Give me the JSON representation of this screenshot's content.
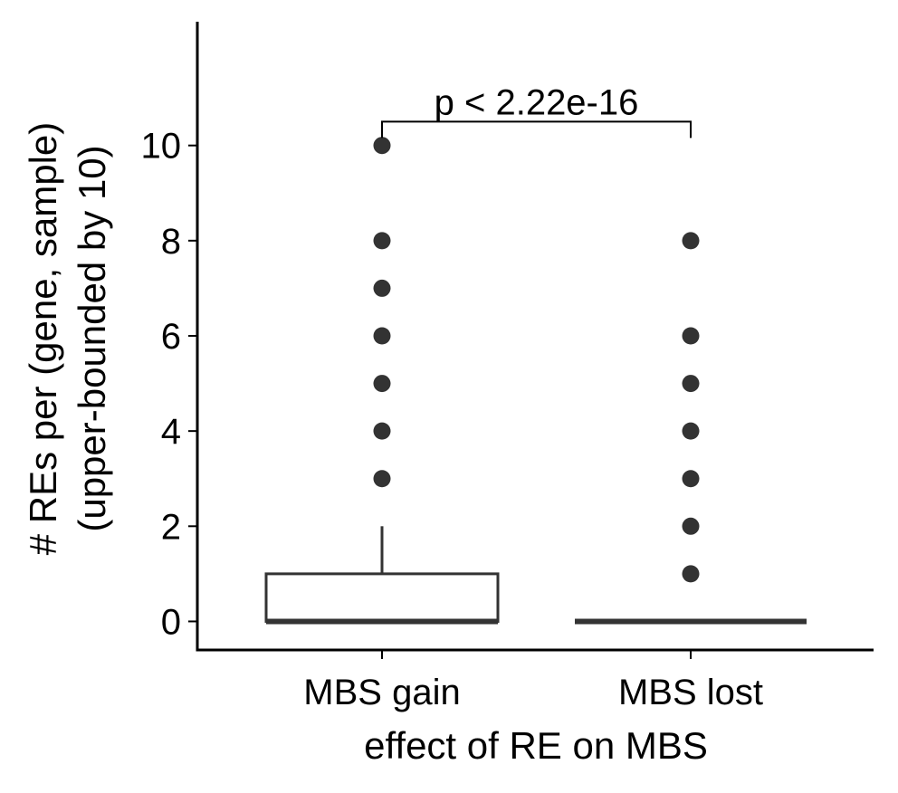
{
  "chart_data": {
    "type": "box",
    "title": "",
    "xlabel": "effect of RE on MBS",
    "ylabel_lines": [
      "# REs per (gene, sample)",
      "(upper-bounded by 10)"
    ],
    "ylim": [
      -0.6,
      12.6
    ],
    "y_ticks": [
      0,
      2,
      4,
      6,
      8,
      10
    ],
    "y_tick_labels": [
      "0",
      "2",
      "4",
      "6",
      "8",
      "10"
    ],
    "categories": [
      "MBS gain",
      "MBS lost"
    ],
    "boxes": [
      {
        "category": "MBS gain",
        "q1": 0,
        "median": 0,
        "q3": 1,
        "whisker_low": 0,
        "whisker_high": 2,
        "outliers": [
          3,
          4,
          5,
          6,
          7,
          8,
          10
        ]
      },
      {
        "category": "MBS lost",
        "q1": 0,
        "median": 0,
        "q3": 0,
        "whisker_low": 0,
        "whisker_high": 0,
        "outliers": [
          1,
          2,
          3,
          4,
          5,
          6,
          8
        ]
      }
    ],
    "annotation": {
      "text": "p < 2.22e-16",
      "y": 10.5,
      "from": "MBS gain",
      "to": "MBS lost"
    },
    "grid": false,
    "colors": {
      "box_stroke": "#333333",
      "box_fill": "#ffffff",
      "points": "#333333",
      "axis": "#000000"
    }
  }
}
